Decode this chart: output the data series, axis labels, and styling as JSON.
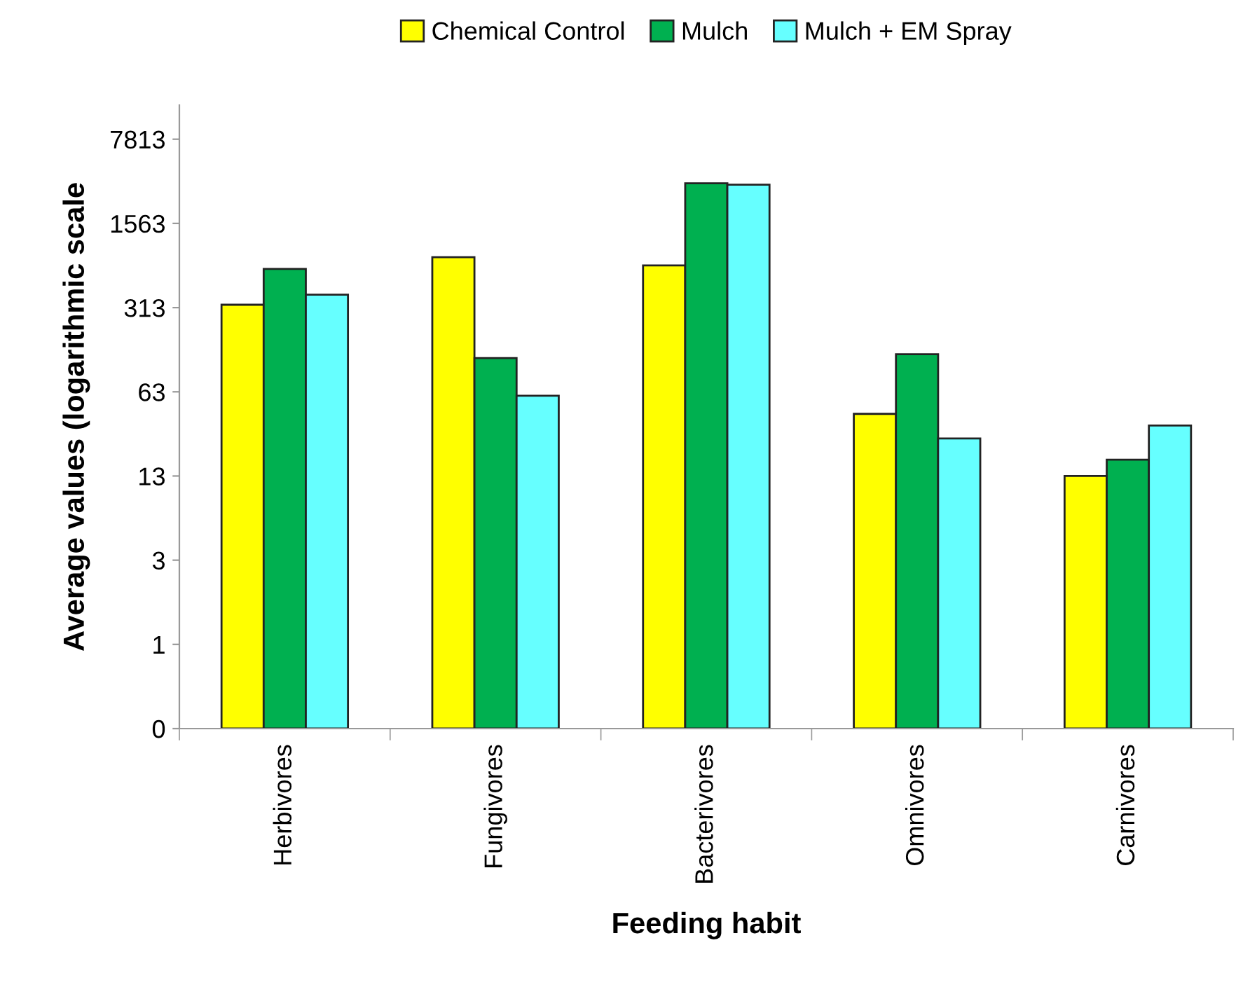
{
  "chart_data": {
    "type": "bar",
    "xlabel": "Feeding habit",
    "ylabel": "Average values (logarithmic scale",
    "categories": [
      "Herbivores",
      "Fungivores",
      "Bacterivores",
      "Omnivores",
      "Carnivores"
    ],
    "series": [
      {
        "name": "Chemical Control",
        "color": "#ffff00",
        "values": [
          330,
          820,
          700,
          41,
          12.5
        ]
      },
      {
        "name": "Mulch",
        "color": "#00b050",
        "values": [
          655,
          119,
          3360,
          128,
          17.1
        ]
      },
      {
        "name": "Mulch + EM Spray",
        "color": "#66ffff",
        "values": [
          400,
          58,
          3280,
          25.6,
          32.8
        ]
      }
    ],
    "log": "y",
    "ylim": [
      0.1,
      15000
    ],
    "yticks": [
      {
        "value": 0.1,
        "label": "0"
      },
      {
        "value": 0.5,
        "label": "1"
      },
      {
        "value": 2.5,
        "label": "3"
      },
      {
        "value": 12.5,
        "label": "13"
      },
      {
        "value": 62.5,
        "label": "63"
      },
      {
        "value": 312.5,
        "label": "313"
      },
      {
        "value": 1562.5,
        "label": "1563"
      },
      {
        "value": 7812.5,
        "label": "7813"
      }
    ],
    "grid": false,
    "legend": "top"
  }
}
